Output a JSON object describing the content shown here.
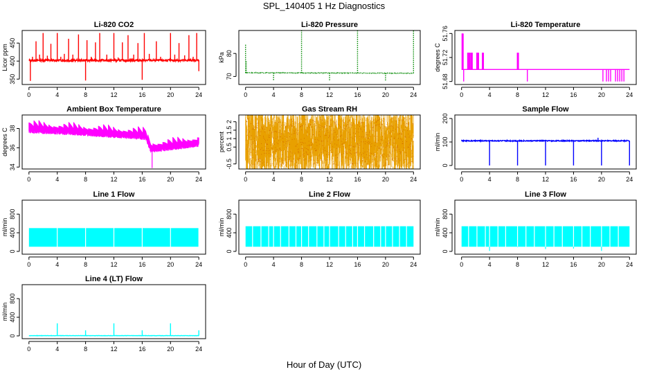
{
  "figure": {
    "title": "SPL_140405  1 Hz Diagnostics",
    "xlabel": "Hour of Day (UTC)"
  },
  "chart_data": [
    {
      "id": "co2",
      "type": "line",
      "title": "Li-820 CO2",
      "ylabel": "Licor ppm",
      "xlim": [
        0,
        24
      ],
      "xticks": [
        0,
        4,
        8,
        12,
        16,
        20,
        24
      ],
      "ylim": [
        335,
        485
      ],
      "yticks": [
        350,
        400,
        450
      ],
      "color": "#ff0000",
      "series_style": "line",
      "base": [
        [
          0,
          402
        ],
        [
          24,
          402
        ]
      ],
      "noise": 3,
      "spikes": [
        [
          0.2,
          345
        ],
        [
          0.5,
          412
        ],
        [
          1.0,
          455
        ],
        [
          1.5,
          418
        ],
        [
          2.0,
          478
        ],
        [
          2.6,
          415
        ],
        [
          3.1,
          448
        ],
        [
          4.0,
          478
        ],
        [
          4.5,
          412
        ],
        [
          5.0,
          420
        ],
        [
          5.6,
          462
        ],
        [
          6.2,
          418
        ],
        [
          7.0,
          474
        ],
        [
          8.0,
          346
        ],
        [
          8.2,
          458
        ],
        [
          8.8,
          412
        ],
        [
          9.4,
          452
        ],
        [
          10.0,
          478
        ],
        [
          11.0,
          418
        ],
        [
          12.0,
          478
        ],
        [
          12.6,
          410
        ],
        [
          13.2,
          452
        ],
        [
          14.0,
          472
        ],
        [
          14.8,
          418
        ],
        [
          15.4,
          450
        ],
        [
          16.0,
          348
        ],
        [
          16.3,
          478
        ],
        [
          17.0,
          420
        ],
        [
          18.0,
          455
        ],
        [
          18.6,
          412
        ],
        [
          20.0,
          478
        ],
        [
          20.6,
          418
        ],
        [
          21.2,
          450
        ],
        [
          22.0,
          416
        ],
        [
          22.6,
          472
        ],
        [
          23.2,
          412
        ],
        [
          23.7,
          478
        ],
        [
          24.0,
          372
        ]
      ]
    },
    {
      "id": "pressure",
      "type": "line",
      "title": "Li-820 Pressure",
      "ylabel": "kPa",
      "xlim": [
        0,
        24
      ],
      "xticks": [
        0,
        4,
        8,
        12,
        16,
        20,
        24
      ],
      "ylim": [
        66.5,
        90
      ],
      "yticks": [
        70,
        80
      ],
      "color": "#008800",
      "series_style": "dots",
      "base": [
        [
          0,
          71.6
        ],
        [
          24,
          71.4
        ]
      ],
      "noise": 0.12,
      "spikes": [
        [
          0.0,
          84
        ],
        [
          0.1,
          77
        ],
        [
          4.0,
          68
        ],
        [
          8.0,
          90
        ],
        [
          12.0,
          68
        ],
        [
          16.0,
          90
        ],
        [
          20.0,
          68
        ],
        [
          24.0,
          90
        ]
      ]
    },
    {
      "id": "temp",
      "type": "line",
      "title": "Li-820 Temperature",
      "ylabel": "degrees C",
      "xlim": [
        0,
        24
      ],
      "xticks": [
        0,
        4,
        8,
        12,
        16,
        20,
        24
      ],
      "ylim": [
        51.675,
        51.765
      ],
      "yticks": [
        51.68,
        51.72,
        51.76
      ],
      "color": "#ff00ff",
      "series_style": "step",
      "base": [
        [
          0,
          51.7
        ],
        [
          24,
          51.7
        ]
      ],
      "noise": 0,
      "spikes": [
        [
          0.1,
          51.76
        ],
        [
          0.3,
          51.68
        ],
        [
          0.9,
          51.728
        ],
        [
          1.1,
          51.728
        ],
        [
          1.4,
          51.728
        ],
        [
          2.2,
          51.728
        ],
        [
          2.3,
          51.728
        ],
        [
          3.0,
          51.728
        ],
        [
          8.0,
          51.728
        ],
        [
          9.4,
          51.68
        ],
        [
          20.2,
          51.68
        ],
        [
          20.7,
          51.68
        ],
        [
          21.0,
          51.68
        ],
        [
          21.3,
          51.68
        ],
        [
          22.0,
          51.68
        ],
        [
          22.3,
          51.68
        ],
        [
          22.6,
          51.68
        ],
        [
          22.9,
          51.68
        ],
        [
          23.2,
          51.68
        ]
      ]
    },
    {
      "id": "boxtemp",
      "type": "line",
      "title": "Ambient Box Temperature",
      "ylabel": "degrees C",
      "xlim": [
        0,
        24
      ],
      "xticks": [
        0,
        4,
        8,
        12,
        16,
        20,
        24
      ],
      "ylim": [
        33.8,
        39.4
      ],
      "yticks": [
        34,
        36,
        38
      ],
      "color": "#ff00ff",
      "series_style": "sawtooth",
      "base": [
        [
          0,
          38.2
        ],
        [
          6,
          38.0
        ],
        [
          12,
          37.7
        ],
        [
          16.5,
          37.5
        ],
        [
          17.2,
          36.2
        ],
        [
          20,
          36.4
        ],
        [
          24,
          36.8
        ]
      ],
      "noise": 0.7,
      "spikes": [
        [
          17.4,
          33.9
        ]
      ]
    },
    {
      "id": "rh",
      "type": "line",
      "title": "Gas Stream RH",
      "ylabel": "percent",
      "xlim": [
        0,
        24
      ],
      "xticks": [
        0,
        4,
        8,
        12,
        16,
        20,
        24
      ],
      "ylim": [
        -0.8,
        2.4
      ],
      "yticks": [
        -0.5,
        0.5,
        1.0,
        1.5,
        2.0
      ],
      "color": "#e8a000",
      "series_style": "dense",
      "base": [
        [
          0,
          0.8
        ],
        [
          24,
          0.8
        ]
      ],
      "noise": 1.4,
      "spikes": []
    },
    {
      "id": "sampleflow",
      "type": "line",
      "title": "Sample Flow",
      "ylabel": "ml/min",
      "xlim": [
        0,
        24
      ],
      "xticks": [
        0,
        4,
        8,
        12,
        16,
        20,
        24
      ],
      "ylim": [
        -15,
        215
      ],
      "yticks": [
        0,
        100,
        200
      ],
      "color": "#0000ff",
      "series_style": "line",
      "base": [
        [
          0,
          105
        ],
        [
          24,
          105
        ]
      ],
      "noise": 2,
      "spikes": [
        [
          4.0,
          0
        ],
        [
          8.0,
          0
        ],
        [
          12.0,
          0
        ],
        [
          16.0,
          0
        ],
        [
          20.0,
          0
        ],
        [
          19.5,
          118
        ],
        [
          24.0,
          0
        ]
      ]
    },
    {
      "id": "line1",
      "type": "line",
      "title": "Line 1 Flow",
      "ylabel": "ml/min",
      "xlim": [
        0,
        24
      ],
      "xticks": [
        0,
        4,
        8,
        12,
        16,
        20,
        24
      ],
      "ylim": [
        -60,
        1100
      ],
      "yticks": [
        0,
        400,
        800
      ],
      "color": "#00ffff",
      "series_style": "band",
      "base": [
        [
          0,
          300
        ],
        [
          24,
          300
        ]
      ],
      "noise": 200,
      "spikes": [
        [
          4.0,
          300
        ],
        [
          8.0,
          300
        ],
        [
          12.0,
          300
        ],
        [
          16.0,
          300
        ],
        [
          20.0,
          300
        ],
        [
          24.0,
          300
        ]
      ]
    },
    {
      "id": "line2",
      "type": "line",
      "title": "Line 2 Flow",
      "ylabel": "ml/min",
      "xlim": [
        0,
        24
      ],
      "xticks": [
        0,
        4,
        8,
        12,
        16,
        20,
        24
      ],
      "ylim": [
        -60,
        1100
      ],
      "yticks": [
        0,
        400,
        800
      ],
      "color": "#00ffff",
      "series_style": "band",
      "base": [
        [
          0,
          320
        ],
        [
          24,
          320
        ]
      ],
      "noise": 220,
      "spikes": [
        [
          1.0,
          320
        ],
        [
          2.2,
          320
        ],
        [
          3.3,
          320
        ],
        [
          4.0,
          320
        ],
        [
          5.0,
          320
        ],
        [
          6.2,
          320
        ],
        [
          7.2,
          320
        ],
        [
          8.0,
          320
        ],
        [
          9.0,
          320
        ],
        [
          10.2,
          320
        ],
        [
          11.2,
          320
        ],
        [
          12.0,
          320
        ],
        [
          13.3,
          320
        ],
        [
          14.3,
          320
        ],
        [
          15.3,
          320
        ],
        [
          16.0,
          320
        ],
        [
          17.0,
          320
        ],
        [
          18.3,
          320
        ],
        [
          19.3,
          320
        ],
        [
          20.0,
          320
        ],
        [
          21.0,
          320
        ],
        [
          22.0,
          320
        ],
        [
          23.0,
          320
        ]
      ]
    },
    {
      "id": "line3",
      "type": "line",
      "title": "Line 3 Flow",
      "ylabel": "ml/min",
      "xlim": [
        0,
        24
      ],
      "xticks": [
        0,
        4,
        8,
        12,
        16,
        20,
        24
      ],
      "ylim": [
        -60,
        1100
      ],
      "yticks": [
        0,
        400,
        800
      ],
      "color": "#00ffff",
      "series_style": "band",
      "base": [
        [
          0,
          320
        ],
        [
          24,
          320
        ]
      ],
      "noise": 220,
      "spikes": [
        [
          1.0,
          320
        ],
        [
          2.2,
          320
        ],
        [
          3.4,
          320
        ],
        [
          4.0,
          10
        ],
        [
          5.2,
          320
        ],
        [
          6.3,
          320
        ],
        [
          8.0,
          90
        ],
        [
          9.2,
          320
        ],
        [
          10.4,
          320
        ],
        [
          12.0,
          50
        ],
        [
          13.2,
          320
        ],
        [
          14.4,
          320
        ],
        [
          16.0,
          60
        ],
        [
          17.2,
          320
        ],
        [
          18.4,
          320
        ],
        [
          20.0,
          10
        ],
        [
          21.2,
          320
        ],
        [
          22.4,
          320
        ]
      ]
    },
    {
      "id": "line4",
      "type": "line",
      "title": "Line 4 (LT) Flow",
      "ylabel": "ml/min",
      "xlim": [
        0,
        24
      ],
      "xticks": [
        0,
        4,
        8,
        12,
        16,
        20,
        24
      ],
      "ylim": [
        -60,
        1100
      ],
      "yticks": [
        0,
        400,
        800
      ],
      "color": "#00ffff",
      "series_style": "line",
      "base": [
        [
          0,
          5
        ],
        [
          24,
          5
        ]
      ],
      "noise": 3,
      "spikes": [
        [
          4.0,
          270
        ],
        [
          8.0,
          120
        ],
        [
          12.0,
          270
        ],
        [
          16.0,
          120
        ],
        [
          20.0,
          270
        ],
        [
          24.0,
          120
        ]
      ]
    }
  ]
}
